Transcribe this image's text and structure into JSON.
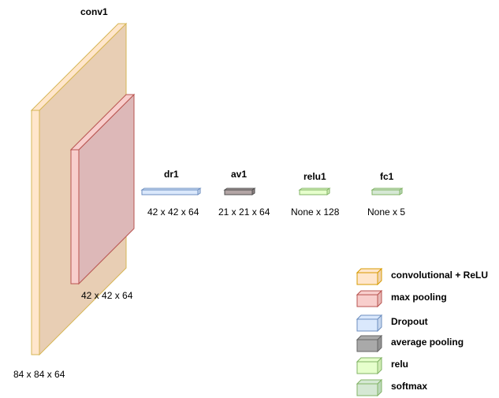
{
  "layers": [
    {
      "id": "conv1",
      "name": "conv1",
      "shape": "84 x 84 x 64",
      "type": "convolutional + ReLU"
    },
    {
      "id": "pool1",
      "name": "",
      "shape": "42 x 42 x 64",
      "type": "max pooling"
    },
    {
      "id": "dr1",
      "name": "dr1",
      "shape": "42 x 42 x 64",
      "type": "Dropout"
    },
    {
      "id": "av1",
      "name": "av1",
      "shape": "21 x 21 x 64",
      "type": "average pooling"
    },
    {
      "id": "relu1",
      "name": "relu1",
      "shape": "None x 128",
      "type": "relu"
    },
    {
      "id": "fc1",
      "name": "fc1",
      "shape": "None x 5",
      "type": "softmax"
    }
  ],
  "legend": [
    {
      "label": "convolutional + ReLU",
      "fill": "#ffe6cc",
      "stroke": "#d79b00"
    },
    {
      "label": "max pooling",
      "fill": "#f8cecc",
      "stroke": "#b85450"
    },
    {
      "label": "Dropout",
      "fill": "#dae8fc",
      "stroke": "#6c8ebf"
    },
    {
      "label": "average pooling",
      "fill": "#a9a9a9",
      "stroke": "#666666"
    },
    {
      "label": "relu",
      "fill": "#e6ffcc",
      "stroke": "#82b366"
    },
    {
      "label": "softmax",
      "fill": "#d5e8d4",
      "stroke": "#82b366"
    }
  ],
  "colors": {
    "conv_fill": "#e8ceb4",
    "conv_front": "#ffe6cc",
    "conv_stroke": "#d6b656",
    "pool_fill": "#ddb8b8",
    "pool_front": "#f8cecc",
    "pool_stroke": "#b85450",
    "dropout_fill": "#dae8fc",
    "dropout_stroke": "#6c8ebf",
    "avg_fill": "#b3a5a5",
    "avg_stroke": "#4d4d4d",
    "relu_fill": "#e6ffcc",
    "relu_stroke": "#82b366",
    "softmax_fill": "#d5e8d4",
    "softmax_stroke": "#82b366"
  }
}
